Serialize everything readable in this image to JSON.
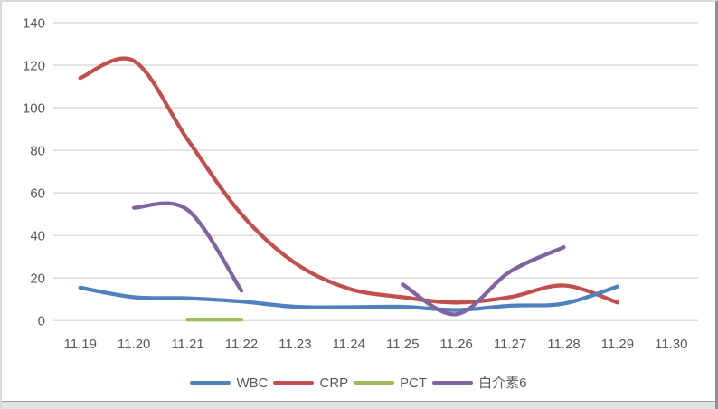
{
  "chart_data": {
    "type": "line",
    "title": "",
    "smooth": true,
    "grid": true,
    "legend_position": "bottom",
    "categories": [
      "11.19",
      "11.20",
      "11.21",
      "11.22",
      "11.23",
      "11.24",
      "11.25",
      "11.26",
      "11.27",
      "11.28",
      "11.29",
      "11.30"
    ],
    "y_axis": {
      "min": 0,
      "max": 140,
      "step": 20,
      "tick_labels": [
        "0",
        "20",
        "40",
        "60",
        "80",
        "100",
        "120",
        "140"
      ]
    },
    "series": [
      {
        "name": "WBC",
        "color": "#4F81BD",
        "values": [
          15.5,
          11,
          10.5,
          9,
          6.5,
          6.3,
          6.5,
          5,
          7,
          8,
          16,
          null
        ]
      },
      {
        "name": "CRP",
        "color": "#C0504D",
        "values": [
          114,
          122,
          85,
          50,
          27,
          15,
          11,
          8.5,
          11,
          16.5,
          8.5,
          null
        ]
      },
      {
        "name": "PCT",
        "color": "#9BBB59",
        "values": [
          null,
          null,
          0.5,
          0.5,
          null,
          null,
          null,
          null,
          null,
          null,
          null,
          null
        ]
      },
      {
        "name": "白介素6",
        "color": "#8064A2",
        "values": [
          null,
          53,
          52,
          14,
          null,
          null,
          17,
          3,
          23,
          34.5,
          null,
          null
        ]
      }
    ]
  },
  "colors": {
    "grid_line": "#dcdcdc",
    "tick_text": "#595959",
    "background": "#ffffff"
  }
}
